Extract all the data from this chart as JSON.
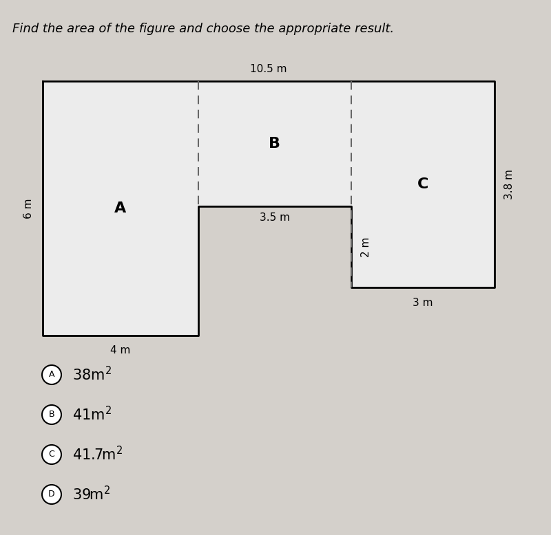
{
  "title": "Find the area of the figure and choose the appropriate result.",
  "bg_color": "#d4d0cb",
  "shape_fill": "#ececec",
  "shape_edge": "#000000",
  "dashed_color": "#666666",
  "label_A": "A",
  "label_B": "B",
  "label_C": "C",
  "dim_top": "10.5 m",
  "dim_left": "6 m",
  "dim_bottom_left": "4 m",
  "dim_middle": "3.5 m",
  "dim_right_vert": "2 m",
  "dim_right_horiz": "3 m",
  "dim_far_right": "3.8 m",
  "choices": [
    {
      "letter": "A",
      "text": "38m",
      "sup": "2"
    },
    {
      "letter": "B",
      "text": "41m",
      "sup": "2"
    },
    {
      "letter": "C",
      "text": "41.7m",
      "sup": "2"
    },
    {
      "letter": "D",
      "text": "39m",
      "sup": "2"
    }
  ],
  "fig_width": 8.0,
  "fig_height": 7.78
}
